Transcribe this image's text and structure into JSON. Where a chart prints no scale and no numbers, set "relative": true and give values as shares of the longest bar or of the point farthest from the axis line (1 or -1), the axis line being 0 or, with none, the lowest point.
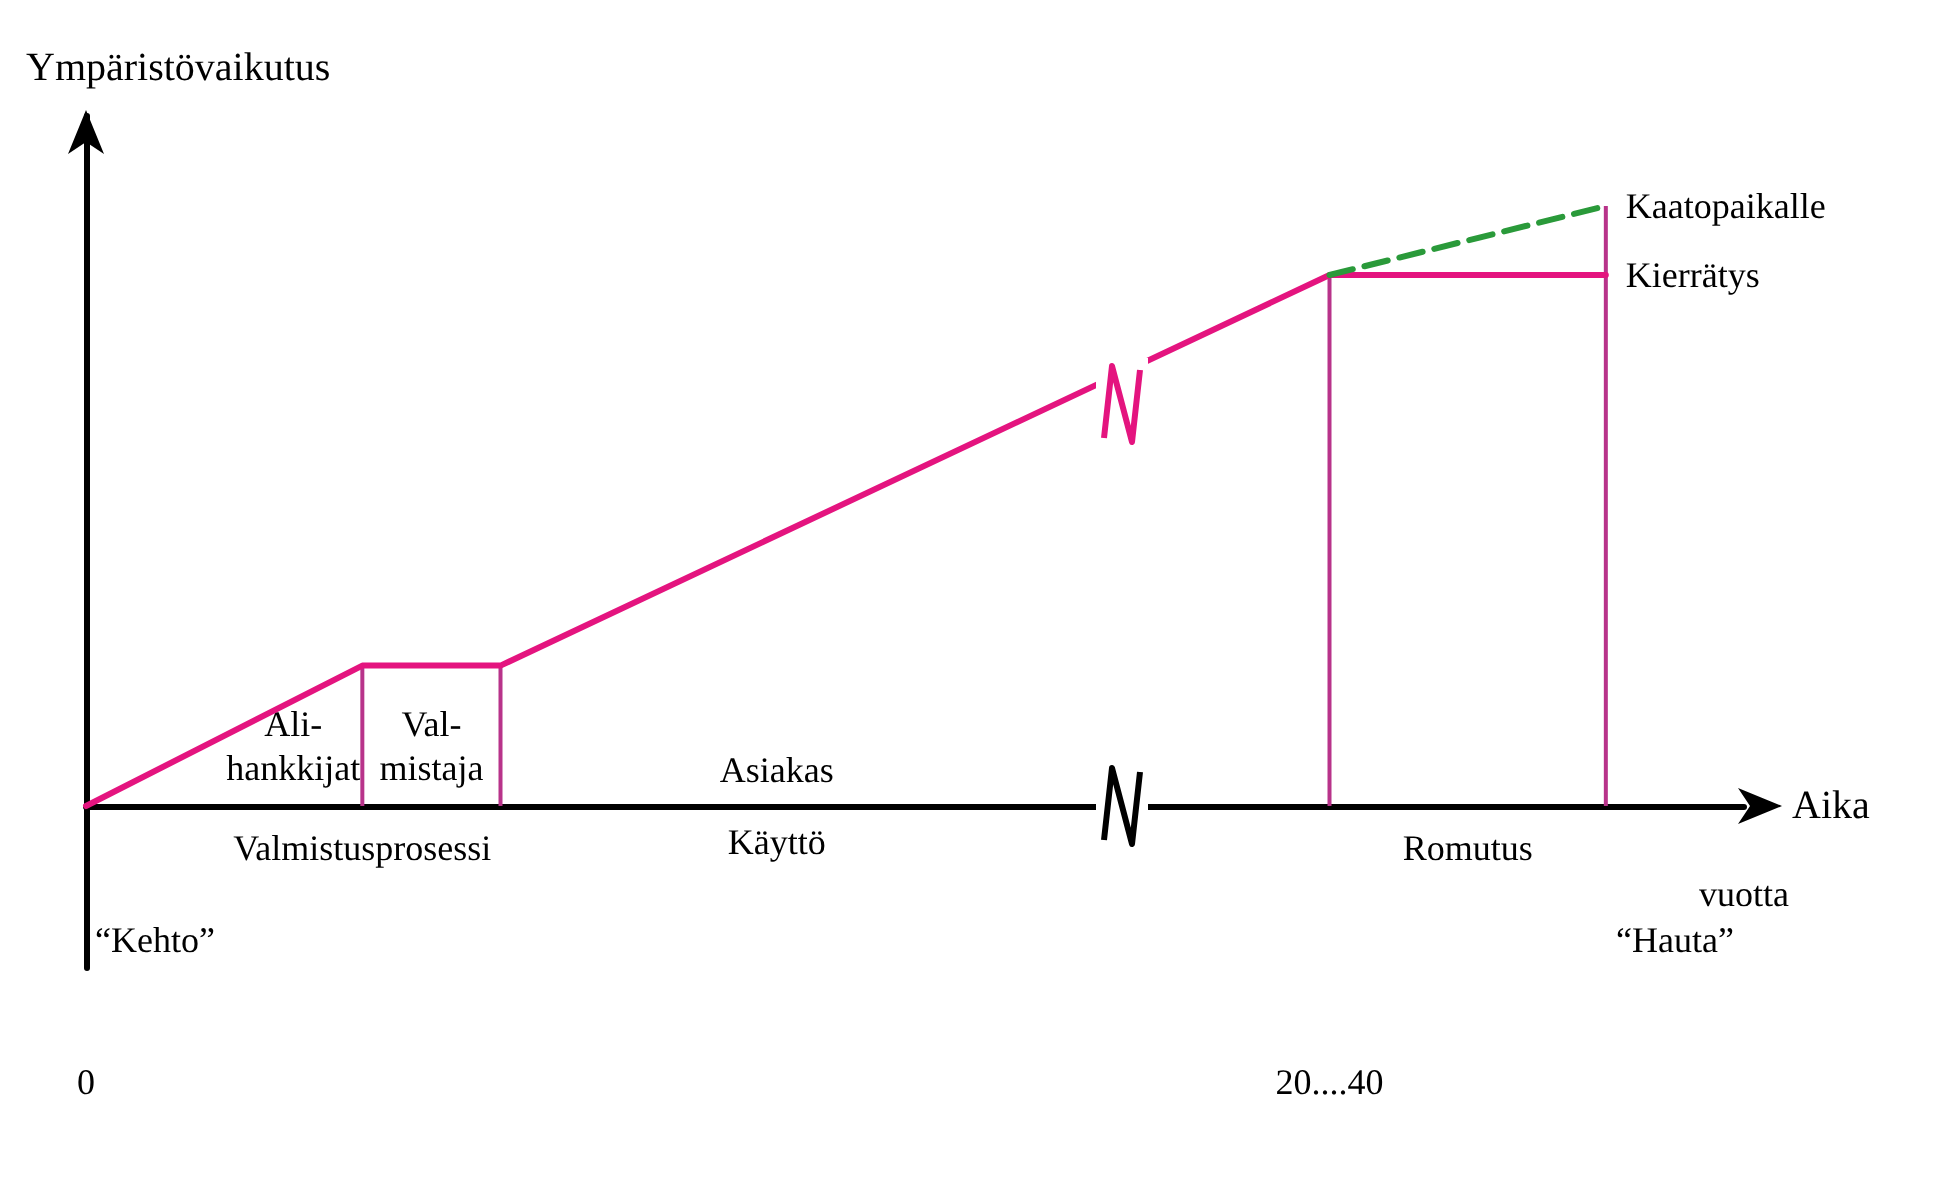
{
  "chart_data": {
    "type": "line",
    "relative": true,
    "ylabel": "Ympäristövaikutus",
    "xlabel": "Aika",
    "categories": [
      "0",
      null,
      null,
      null,
      null,
      null,
      null,
      null,
      null,
      null,
      null,
      null,
      null,
      null,
      null,
      null,
      null,
      null,
      "20....40",
      null,
      null,
      null,
      null,
      null,
      null
    ],
    "series": [
      {
        "name": "Kierrätys",
        "color": "#e4147f",
        "values": [
          0,
          null,
          null,
          null,
          0.234,
          null,
          0.234,
          null,
          null,
          null,
          null,
          null,
          null,
          null,
          null,
          null,
          null,
          null,
          0.885,
          null,
          null,
          null,
          0.885,
          null,
          null
        ]
      },
      {
        "name": "Kaatopaikalle",
        "color": "#2a9a3a",
        "line_style": "dashed",
        "values": [
          null,
          null,
          null,
          null,
          null,
          null,
          null,
          null,
          null,
          null,
          null,
          null,
          null,
          null,
          null,
          null,
          null,
          null,
          0.885,
          null,
          null,
          null,
          1,
          null,
          null
        ]
      },
      {
        "type": "bar",
        "color": "#b8338a",
        "values": [
          null,
          null,
          null,
          null,
          0.234,
          null,
          0.234,
          null,
          null,
          null,
          null,
          null,
          null,
          null,
          null,
          null,
          null,
          null,
          0.885,
          null,
          null,
          null,
          1,
          null,
          null
        ]
      }
    ],
    "annotations": [
      "Ali-\nhankkijat",
      "Val-\nmistaja",
      "Valmistusprosessi",
      "Asiakas\nKäyttö",
      "Romutus",
      "vuotta",
      "“Kehto”",
      "“Hauta”"
    ],
    "grid": false,
    "legend": false,
    "marker": "none",
    "line_style": "solid"
  }
}
